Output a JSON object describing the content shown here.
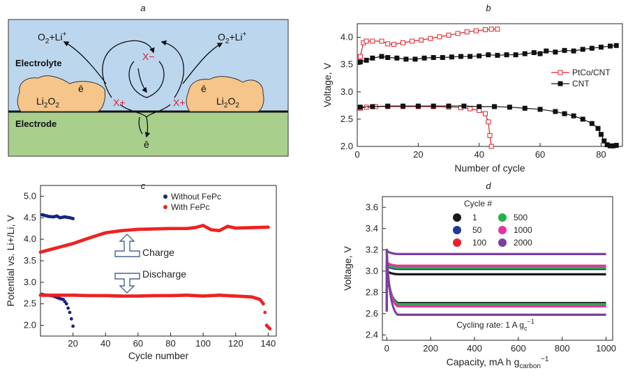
{
  "panel_labels": {
    "a": "a",
    "b": "b",
    "c": "c",
    "d": "d"
  },
  "diagram": {
    "electrolyte_label": "Electrolyte",
    "electrode_label": "Electrode",
    "product_left": "O2+Li+",
    "product_right": "O2+Li+",
    "mediator_reduced": "X−",
    "mediator_oxidized_left": "X+",
    "mediator_oxidized_right": "X+",
    "li2o2_left": "Li2O2",
    "li2o2_right": "Li2O2",
    "electron_left": "ē",
    "electron_right": "ē",
    "electron_bottom": "ē",
    "colors": {
      "electrolyte": "#bcd6ee",
      "electrode": "#a8cf8c",
      "li2o2": "#f0a95a",
      "mediator": "#e0202a"
    }
  },
  "chart_data": [
    {
      "panel": "b",
      "type": "scatter",
      "xlabel": "Number of cycle",
      "ylabel": "Voltage, V",
      "xlim": [
        0,
        87
      ],
      "ylim": [
        2.0,
        4.25
      ],
      "xticks": [
        "0",
        "20",
        "40",
        "60",
        "80"
      ],
      "yticks": [
        "2.0",
        "2.5",
        "3.0",
        "3.5",
        "4.0"
      ],
      "legend_position": "right",
      "series": [
        {
          "name": "PtCo/CNT",
          "marker": "open-square",
          "color": "#e0202a",
          "charge": [
            [
              1,
              3.65
            ],
            [
              2,
              3.9
            ],
            [
              3,
              3.93
            ],
            [
              5,
              3.93
            ],
            [
              8,
              3.93
            ],
            [
              10,
              3.88
            ],
            [
              12,
              3.87
            ],
            [
              15,
              3.9
            ],
            [
              18,
              3.93
            ],
            [
              21,
              3.95
            ],
            [
              24,
              3.98
            ],
            [
              27,
              4.01
            ],
            [
              30,
              4.04
            ],
            [
              33,
              4.07
            ],
            [
              36,
              4.1
            ],
            [
              39,
              4.12
            ],
            [
              42,
              4.14
            ],
            [
              44,
              4.15
            ],
            [
              46,
              4.15
            ]
          ],
          "discharge": [
            [
              1,
              2.7
            ],
            [
              3,
              2.72
            ],
            [
              6,
              2.73
            ],
            [
              10,
              2.73
            ],
            [
              15,
              2.73
            ],
            [
              20,
              2.73
            ],
            [
              25,
              2.73
            ],
            [
              30,
              2.72
            ],
            [
              34,
              2.71
            ],
            [
              37,
              2.69
            ],
            [
              40,
              2.66
            ],
            [
              42,
              2.6
            ],
            [
              43,
              2.45
            ],
            [
              43.5,
              2.2
            ],
            [
              44,
              2.0
            ]
          ]
        },
        {
          "name": "CNT",
          "marker": "filled-square",
          "color": "#111111",
          "charge": [
            [
              1,
              3.55
            ],
            [
              3,
              3.58
            ],
            [
              5,
              3.62
            ],
            [
              8,
              3.65
            ],
            [
              10,
              3.63
            ],
            [
              13,
              3.62
            ],
            [
              16,
              3.6
            ],
            [
              19,
              3.6
            ],
            [
              22,
              3.62
            ],
            [
              25,
              3.63
            ],
            [
              28,
              3.63
            ],
            [
              31,
              3.64
            ],
            [
              34,
              3.65
            ],
            [
              37,
              3.65
            ],
            [
              40,
              3.66
            ],
            [
              43,
              3.68
            ],
            [
              46,
              3.67
            ],
            [
              49,
              3.68
            ],
            [
              52,
              3.68
            ],
            [
              55,
              3.7
            ],
            [
              58,
              3.72
            ],
            [
              60,
              3.7
            ],
            [
              62,
              3.75
            ],
            [
              65,
              3.73
            ],
            [
              68,
              3.76
            ],
            [
              71,
              3.75
            ],
            [
              74,
              3.78
            ],
            [
              77,
              3.8
            ],
            [
              80,
              3.82
            ],
            [
              83,
              3.84
            ],
            [
              85,
              3.85
            ]
          ],
          "discharge": [
            [
              1,
              2.72
            ],
            [
              5,
              2.73
            ],
            [
              10,
              2.74
            ],
            [
              15,
              2.74
            ],
            [
              20,
              2.74
            ],
            [
              25,
              2.74
            ],
            [
              30,
              2.74
            ],
            [
              35,
              2.74
            ],
            [
              40,
              2.73
            ],
            [
              45,
              2.73
            ],
            [
              50,
              2.72
            ],
            [
              55,
              2.7
            ],
            [
              60,
              2.68
            ],
            [
              65,
              2.64
            ],
            [
              68,
              2.6
            ],
            [
              71,
              2.56
            ],
            [
              74,
              2.5
            ],
            [
              77,
              2.42
            ],
            [
              79,
              2.33
            ],
            [
              80,
              2.22
            ],
            [
              81,
              2.1
            ],
            [
              82,
              2.03
            ],
            [
              83,
              2.01
            ],
            [
              84,
              2.01
            ],
            [
              85,
              2.02
            ]
          ]
        }
      ]
    },
    {
      "panel": "c",
      "type": "scatter",
      "xlabel": "Cycle number",
      "ylabel": "Potential vs. Li+/Li, V",
      "xlim": [
        0,
        145
      ],
      "ylim": [
        1.75,
        5.25
      ],
      "xticks": [
        "20",
        "40",
        "60",
        "80",
        "100",
        "120",
        "140"
      ],
      "yticks": [
        "2.0",
        "2.5",
        "3.0",
        "3.5",
        "4.0",
        "4.5",
        "5.0"
      ],
      "annotations": [
        "Charge",
        "Discharge"
      ],
      "legend_position": "top",
      "series": [
        {
          "name": "Without FePc",
          "color": "#1a237e",
          "charge": [
            [
              1,
              4.57
            ],
            [
              3,
              4.55
            ],
            [
              5,
              4.53
            ],
            [
              8,
              4.52
            ],
            [
              10,
              4.54
            ],
            [
              12,
              4.5
            ],
            [
              15,
              4.52
            ],
            [
              18,
              4.5
            ],
            [
              20,
              4.48
            ]
          ],
          "discharge": [
            [
              1,
              2.72
            ],
            [
              3,
              2.7
            ],
            [
              5,
              2.7
            ],
            [
              8,
              2.68
            ],
            [
              10,
              2.65
            ],
            [
              12,
              2.62
            ],
            [
              14,
              2.6
            ],
            [
              16,
              2.5
            ],
            [
              17,
              2.4
            ],
            [
              18,
              2.3
            ],
            [
              19,
              2.15
            ],
            [
              20,
              1.98
            ]
          ]
        },
        {
          "name": "With FePc",
          "color": "#ee2222",
          "charge": [
            [
              0,
              3.7
            ],
            [
              10,
              3.8
            ],
            [
              20,
              3.9
            ],
            [
              30,
              4.03
            ],
            [
              40,
              4.15
            ],
            [
              50,
              4.2
            ],
            [
              60,
              4.23
            ],
            [
              70,
              4.24
            ],
            [
              80,
              4.25
            ],
            [
              90,
              4.25
            ],
            [
              95,
              4.27
            ],
            [
              100,
              4.32
            ],
            [
              105,
              4.22
            ],
            [
              110,
              4.2
            ],
            [
              115,
              4.3
            ],
            [
              120,
              4.26
            ],
            [
              130,
              4.27
            ],
            [
              140,
              4.28
            ]
          ],
          "discharge": [
            [
              0,
              2.7
            ],
            [
              10,
              2.7
            ],
            [
              20,
              2.7
            ],
            [
              30,
              2.69
            ],
            [
              40,
              2.69
            ],
            [
              50,
              2.68
            ],
            [
              60,
              2.68
            ],
            [
              70,
              2.69
            ],
            [
              80,
              2.69
            ],
            [
              90,
              2.7
            ],
            [
              100,
              2.68
            ],
            [
              110,
              2.7
            ],
            [
              120,
              2.68
            ],
            [
              130,
              2.66
            ],
            [
              135,
              2.6
            ],
            [
              137,
              2.5
            ],
            [
              138,
              2.3
            ],
            [
              139,
              2.0
            ],
            [
              141,
              1.92
            ]
          ]
        }
      ]
    },
    {
      "panel": "d",
      "type": "line",
      "xlabel": "Capacity, mA h g",
      "xlabel_sub": "carbon",
      "xlabel_sup": "−1",
      "ylabel": "Voltage, V",
      "xlim": [
        -20,
        1030
      ],
      "ylim": [
        2.35,
        3.7
      ],
      "xticks": [
        "0",
        "200",
        "400",
        "600",
        "800",
        "1000"
      ],
      "yticks": [
        "2.4",
        "2.6",
        "2.8",
        "3.0",
        "3.2",
        "3.4",
        "3.6"
      ],
      "legend_title": "Cycle #",
      "annotation": "Cycling rate: 1 A g",
      "annotation_sub": "c",
      "annotation_sup": "−1",
      "series": [
        {
          "name": "1",
          "color": "#1a1a1a",
          "charge_plateau": 2.97,
          "discharge_plateau": 2.7
        },
        {
          "name": "50",
          "color": "#1f3a93",
          "charge_plateau": 3.02,
          "discharge_plateau": 2.69
        },
        {
          "name": "100",
          "color": "#e82030",
          "charge_plateau": 3.05,
          "discharge_plateau": 2.67
        },
        {
          "name": "500",
          "color": "#22b14c",
          "charge_plateau": 3.03,
          "discharge_plateau": 2.69
        },
        {
          "name": "1000",
          "color": "#e6339a",
          "charge_plateau": 3.05,
          "discharge_plateau": 2.67
        },
        {
          "name": "2000",
          "color": "#7a3fa0",
          "charge_plateau": 3.16,
          "discharge_plateau": 2.59
        }
      ]
    }
  ]
}
